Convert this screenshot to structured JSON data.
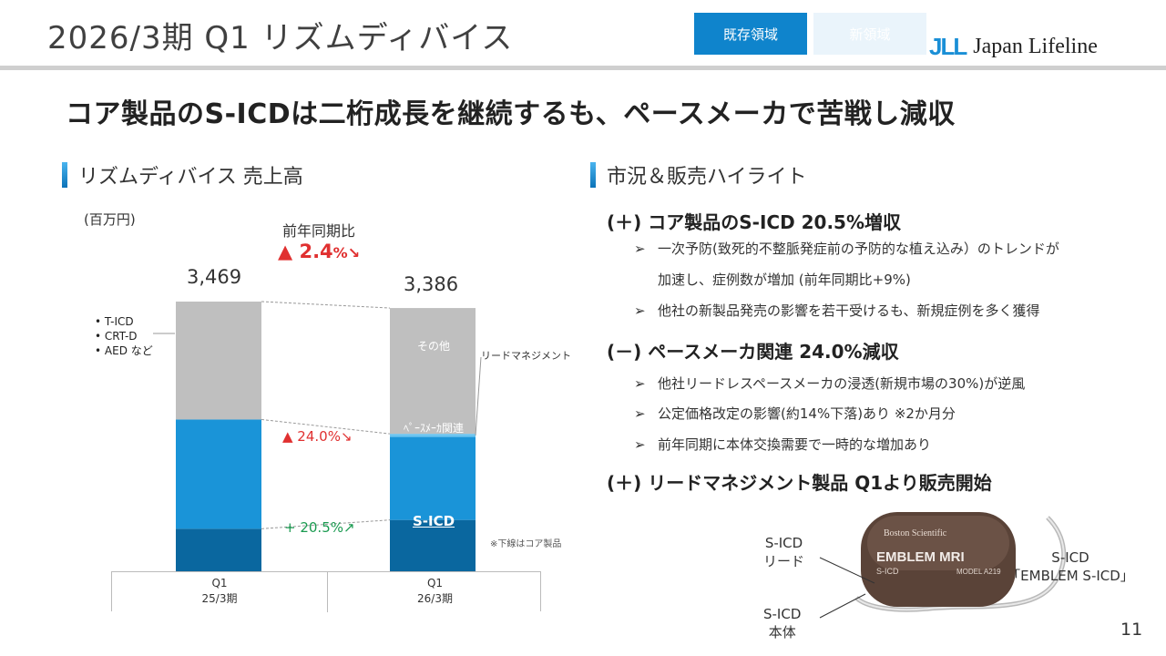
{
  "header": {
    "title": "2026/3期 Q1 リズムディバイス",
    "tab_existing": "既存領域",
    "tab_new": "新領域",
    "logo_mark": "JLL",
    "logo_text": "Japan Lifeline"
  },
  "headline": "コア製品のS-ICDは二桁成長を継続するも、ペースメーカで苦戦し減収",
  "left_section": {
    "title": "リズムディバイス 売上高",
    "unit": "(百万円)",
    "yoy_label": "前年同期比",
    "yoy_value": "▲ 2.4",
    "yoy_suffix": "%↘",
    "legend_items": [
      "T-ICD",
      "CRT-D",
      "AED など"
    ],
    "pace_change": "▲ 24.0%↘",
    "sicd_change": "+ 20.5%↗",
    "inbar_other": "その他",
    "inbar_pace": "ﾍﾟｰｽﾒｰｶ関連",
    "inbar_sicd": "S-ICD",
    "lead_label": "リードマネジメント",
    "core_note": "※下線はコア製品",
    "axis": [
      {
        "q": "Q1",
        "period": "25/3期"
      },
      {
        "q": "Q1",
        "period": "26/3期"
      }
    ]
  },
  "chart_data": {
    "type": "bar",
    "stacked": true,
    "categories": [
      "Q1 25/3期",
      "Q1 26/3期"
    ],
    "totals": [
      3469,
      3386
    ],
    "series": [
      {
        "name": "S-ICD",
        "values": [
          547,
          660
        ],
        "color": "#0a679f"
      },
      {
        "name": "ﾍﾟｰｽﾒｰｶ関連",
        "values": [
          1405,
          1068
        ],
        "color": "#1a94d8"
      },
      {
        "name": "リードマネジメント",
        "values": [
          0,
          40
        ],
        "color": "#6cc4f0"
      },
      {
        "name": "その他",
        "values": [
          1517,
          1618
        ],
        "color": "#bfbfbf"
      }
    ],
    "ylim": [
      0,
      3469
    ]
  },
  "right_section": {
    "title": "市況＆販売ハイライト",
    "blocks": [
      {
        "heading": "(＋) コア製品のS-ICD 20.5%増収",
        "items": [
          {
            "text": "一次予防(致死的不整脈発症前の予防的な植え込み）のトレンドが",
            "cont": "加速し、症例数が増加 (前年同期比+9%)"
          },
          {
            "text": "他社の新製品発売の影響を若干受けるも、新規症例を多く獲得",
            "cont": ""
          }
        ]
      },
      {
        "heading": "(－) ペースメーカ関連 24.0%減収",
        "items": [
          {
            "text": "他社リードレスペースメーカの浸透(新規市場の30%)が逆風",
            "cont": ""
          },
          {
            "text": "公定価格改定の影響(約14%下落)あり ※2か月分",
            "cont": ""
          },
          {
            "text": "前年同期に本体交換需要で一時的な増加あり",
            "cont": ""
          }
        ]
      },
      {
        "heading": "(＋) リードマネジメント製品 Q1より販売開始",
        "items": []
      }
    ],
    "bullet": "➢"
  },
  "device": {
    "label_lead": "S-ICD\nリード",
    "label_body": "S-ICD\n本体",
    "label_product_1": "S-ICD",
    "label_product_2": "「EMBLEM S-ICD」",
    "brand": "Boston Scientific",
    "model_name": "EMBLEM MRI",
    "model_sub": "S-ICD",
    "model_no": "MODEL A219"
  },
  "page_number": "11"
}
